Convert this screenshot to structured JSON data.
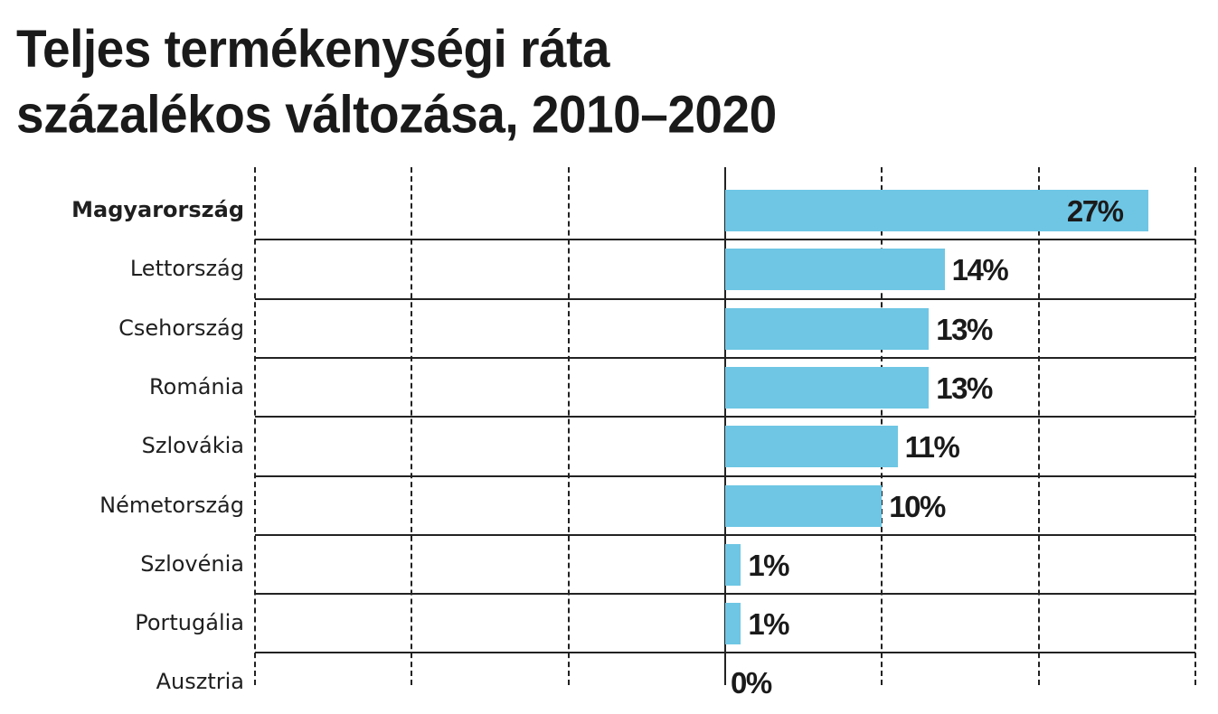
{
  "title": {
    "line1": "Teljes termékenységi ráta",
    "line2": "százalékos változása, 2010–2020"
  },
  "colors": {
    "bar": "#6ec6e4",
    "text": "#1b1a1a",
    "grid": "#222222"
  },
  "chart_data": {
    "type": "bar",
    "orientation": "horizontal",
    "title": "Teljes termékenységi ráta százalékos változása, 2010–2020",
    "xlabel": "",
    "ylabel": "",
    "categories": [
      "Magyarország",
      "Lettország",
      "Csehország",
      "Románia",
      "Szlovákia",
      "Németország",
      "Szlovénia",
      "Portugália",
      "Ausztria"
    ],
    "values": [
      27,
      14,
      13,
      13,
      11,
      10,
      1,
      1,
      0
    ],
    "value_labels": [
      "27%",
      "14%",
      "13%",
      "13%",
      "11%",
      "10%",
      "1%",
      "1%",
      "0%"
    ],
    "highlighted": "Magyarország",
    "xlim": [
      -30,
      30
    ],
    "gridlines_x": [
      -30,
      -20,
      -10,
      0,
      10,
      20,
      30
    ],
    "grid": true,
    "legend": null,
    "unit": "%"
  },
  "rows": [
    {
      "label": "Magyarország",
      "value": 27,
      "value_label": "27%",
      "bold": true
    },
    {
      "label": "Lettország",
      "value": 14,
      "value_label": "14%",
      "bold": false
    },
    {
      "label": "Csehország",
      "value": 13,
      "value_label": "13%",
      "bold": false
    },
    {
      "label": "Románia",
      "value": 13,
      "value_label": "13%",
      "bold": false
    },
    {
      "label": "Szlovákia",
      "value": 11,
      "value_label": "11%",
      "bold": false
    },
    {
      "label": "Németország",
      "value": 10,
      "value_label": "10%",
      "bold": false
    },
    {
      "label": "Szlovénia",
      "value": 1,
      "value_label": "1%",
      "bold": false
    },
    {
      "label": "Portugália",
      "value": 1,
      "value_label": "1%",
      "bold": false
    },
    {
      "label": "Ausztria",
      "value": 0,
      "value_label": "0%",
      "bold": false
    }
  ]
}
